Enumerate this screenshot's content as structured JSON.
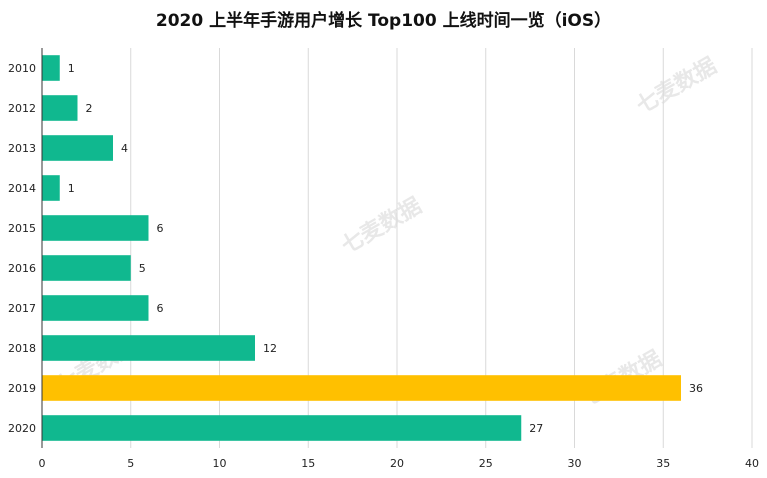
{
  "chart_data": {
    "type": "bar",
    "orientation": "horizontal",
    "title": "2020 上半年手游用户增长 Top100 上线时间一览（iOS）",
    "categories": [
      "2010",
      "2012",
      "2013",
      "2014",
      "2015",
      "2016",
      "2017",
      "2018",
      "2019",
      "2020"
    ],
    "values": [
      1,
      2,
      4,
      1,
      6,
      5,
      6,
      12,
      36,
      27
    ],
    "highlight_category": "2019",
    "xlim": [
      0,
      40
    ],
    "xticks": [
      0,
      5,
      10,
      15,
      20,
      25,
      30,
      35,
      40
    ],
    "xlabel": "",
    "ylabel": "",
    "grid": true,
    "colors": {
      "bar": "#10B88F",
      "highlight": "#FFC000",
      "grid": "#d9d9d9",
      "axis": "#333333"
    }
  },
  "watermark": "七麦数据"
}
